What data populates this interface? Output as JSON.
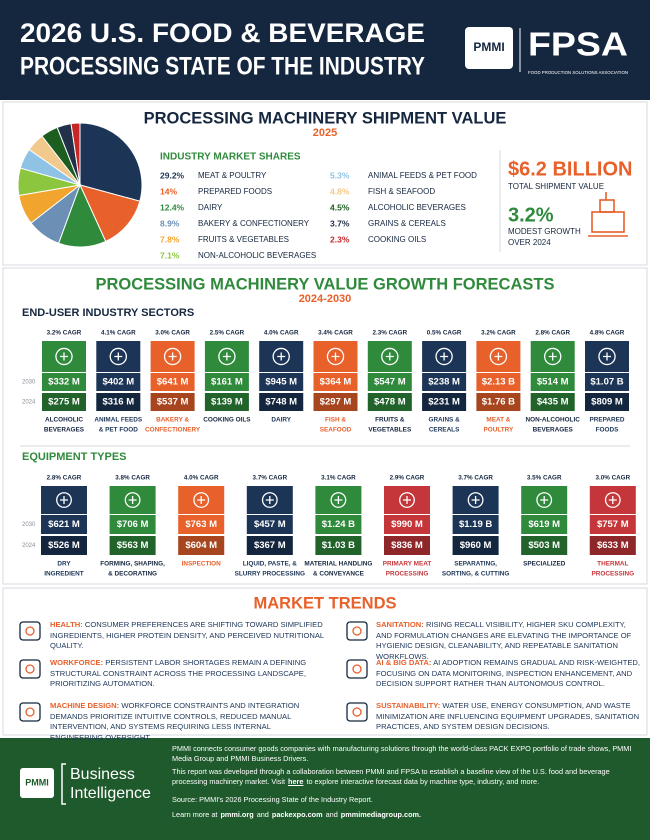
{
  "header": {
    "title_line1": "2026 U.S. FOOD & BEVERAGE",
    "title_line2": "PROCESSING STATE OF THE INDUSTRY",
    "logo_pmmi": "PMMI",
    "logo_fpsa": "FPSA",
    "fpsa_tagline": "FOOD PRODUCTION SOLUTIONS ASSOCIATION"
  },
  "chart_data": {
    "type": "pie",
    "title": "PROCESSING MACHINERY SHIPMENT VALUE",
    "subtitle": "2025",
    "legend_title": "INDUSTRY MARKET SHARES",
    "categories": [
      "MEAT & POULTRY",
      "PREPARED FOODS",
      "DAIRY",
      "BAKERY & CONFECTIONERY",
      "FRUITS & VEGETABLES",
      "NON-ALCOHOLIC BEVERAGES",
      "ANIMAL FEEDS & PET FOOD",
      "FISH & SEAFOOD",
      "ALCOHOLIC BEVERAGES",
      "GRAINS & CEREALS",
      "COOKING OILS"
    ],
    "values": [
      29.2,
      14,
      12.4,
      8.9,
      7.8,
      7.1,
      5.3,
      4.8,
      4.5,
      3.7,
      2.3
    ],
    "value_labels": [
      "29.2%",
      "14%",
      "12.4%",
      "8.9%",
      "7.8%",
      "7.1%",
      "5.3%",
      "4.8%",
      "4.5%",
      "3.7%",
      "2.3%"
    ],
    "colors": [
      "#1c3557",
      "#e8602a",
      "#2f8a3c",
      "#6b8fb5",
      "#f2a52e",
      "#8cc63f",
      "#8fc3e6",
      "#f2c98c",
      "#1b5e20",
      "#22304a",
      "#c62828"
    ]
  },
  "summary": {
    "total": "$6.2 BILLION",
    "total_label": "TOTAL SHIPMENT VALUE",
    "growth": "3.2%",
    "growth_label_1": "MODEST GROWTH",
    "growth_label_2": "OVER 2024"
  },
  "forecasts": {
    "title": "PROCESSING MACHINERY VALUE GROWTH FORECASTS",
    "subtitle": "2024-2030",
    "year_2030": "2030",
    "year_2024": "2024",
    "sectors": {
      "title": "END-USER INDUSTRY SECTORS",
      "items": [
        {
          "name_lines": [
            "ALCOHOLIC",
            "BEVERAGES"
          ],
          "color": "#2f8a3c",
          "cagr": {
            "value": 3.2,
            "label": "3.2% CAGR"
          },
          "v2030": {
            "value": 332,
            "label": "$332 M"
          },
          "v2024": {
            "value": 275,
            "label": "$275 M"
          }
        },
        {
          "name_lines": [
            "ANIMAL FEEDS",
            "& PET FOOD"
          ],
          "color": "#1c3557",
          "cagr": {
            "value": 4.1,
            "label": "4.1% CAGR"
          },
          "v2030": {
            "value": 402,
            "label": "$402 M"
          },
          "v2024": {
            "value": 316,
            "label": "$316 M"
          }
        },
        {
          "name_lines": [
            "BAKERY &",
            "CONFECTIONERY"
          ],
          "color": "#e8602a",
          "cagr": {
            "value": 3.0,
            "label": "3.0% CAGR"
          },
          "v2030": {
            "value": 641,
            "label": "$641 M"
          },
          "v2024": {
            "value": 537,
            "label": "$537 M"
          }
        },
        {
          "name_lines": [
            "COOKING OILS"
          ],
          "color": "#2f8a3c",
          "cagr": {
            "value": 2.5,
            "label": "2.5% CAGR"
          },
          "v2030": {
            "value": 161,
            "label": "$161 M"
          },
          "v2024": {
            "value": 139,
            "label": "$139 M"
          }
        },
        {
          "name_lines": [
            "DAIRY"
          ],
          "color": "#1c3557",
          "cagr": {
            "value": 4.0,
            "label": "4.0% CAGR"
          },
          "v2030": {
            "value": 945,
            "label": "$945 M"
          },
          "v2024": {
            "value": 748,
            "label": "$748 M"
          }
        },
        {
          "name_lines": [
            "FISH &",
            "SEAFOOD"
          ],
          "color": "#e8602a",
          "cagr": {
            "value": 3.4,
            "label": "3.4% CAGR"
          },
          "v2030": {
            "value": 364,
            "label": "$364 M"
          },
          "v2024": {
            "value": 297,
            "label": "$297 M"
          }
        },
        {
          "name_lines": [
            "FRUITS &",
            "VEGETABLES"
          ],
          "color": "#2f8a3c",
          "cagr": {
            "value": 2.3,
            "label": "2.3% CAGR"
          },
          "v2030": {
            "value": 547,
            "label": "$547 M"
          },
          "v2024": {
            "value": 478,
            "label": "$478 M"
          }
        },
        {
          "name_lines": [
            "GRAINS &",
            "CEREALS"
          ],
          "color": "#1c3557",
          "cagr": {
            "value": 0.5,
            "label": "0.5% CAGR"
          },
          "v2030": {
            "value": 238,
            "label": "$238 M"
          },
          "v2024": {
            "value": 231,
            "label": "$231 M"
          }
        },
        {
          "name_lines": [
            "MEAT &",
            "POULTRY"
          ],
          "color": "#e8602a",
          "cagr": {
            "value": 3.2,
            "label": "3.2% CAGR"
          },
          "v2030": {
            "value": 2130,
            "label": "$2.13 B"
          },
          "v2024": {
            "value": 1760,
            "label": "$1.76 B"
          }
        },
        {
          "name_lines": [
            "NON-ALCOHOLIC",
            "BEVERAGES"
          ],
          "color": "#2f8a3c",
          "cagr": {
            "value": 2.8,
            "label": "2.8% CAGR"
          },
          "v2030": {
            "value": 514,
            "label": "$514 M"
          },
          "v2024": {
            "value": 435,
            "label": "$435 M"
          }
        },
        {
          "name_lines": [
            "PREPARED",
            "FOODS"
          ],
          "color": "#1c3557",
          "cagr": {
            "value": 4.8,
            "label": "4.8% CAGR"
          },
          "v2030": {
            "value": 1070,
            "label": "$1.07 B"
          },
          "v2024": {
            "value": 809,
            "label": "$809 M"
          }
        }
      ]
    },
    "equipment": {
      "title": "EQUIPMENT TYPES",
      "items": [
        {
          "name_lines": [
            "DRY",
            "INGREDIENT"
          ],
          "color": "#1c3557",
          "cagr": {
            "value": 2.8,
            "label": "2.8% CAGR"
          },
          "v2030": {
            "value": 621,
            "label": "$621 M"
          },
          "v2024": {
            "value": 526,
            "label": "$526 M"
          }
        },
        {
          "name_lines": [
            "FORMING, SHAPING,",
            "& DECORATING"
          ],
          "color": "#2f8a3c",
          "cagr": {
            "value": 3.8,
            "label": "3.8% CAGR"
          },
          "v2030": {
            "value": 706,
            "label": "$706 M"
          },
          "v2024": {
            "value": 563,
            "label": "$563 M"
          }
        },
        {
          "name_lines": [
            "INSPECTION"
          ],
          "color": "#e8602a",
          "cagr": {
            "value": 4.0,
            "label": "4.0% CAGR"
          },
          "v2030": {
            "value": 763,
            "label": "$763 M"
          },
          "v2024": {
            "value": 604,
            "label": "$604 M"
          }
        },
        {
          "name_lines": [
            "LIQUID, PASTE, &",
            "SLURRY PROCESSING"
          ],
          "color": "#1c3557",
          "cagr": {
            "value": 3.7,
            "label": "3.7% CAGR"
          },
          "v2030": {
            "value": 457,
            "label": "$457 M"
          },
          "v2024": {
            "value": 367,
            "label": "$367 M"
          }
        },
        {
          "name_lines": [
            "MATERIAL HANDLING",
            "& CONVEYANCE"
          ],
          "color": "#2f8a3c",
          "cagr": {
            "value": 3.1,
            "label": "3.1% CAGR"
          },
          "v2030": {
            "value": 1240,
            "label": "$1.24 B"
          },
          "v2024": {
            "value": 1030,
            "label": "$1.03 B"
          }
        },
        {
          "name_lines": [
            "PRIMARY MEAT",
            "PROCESSING"
          ],
          "color": "#c4363a",
          "cagr": {
            "value": 2.9,
            "label": "2.9% CAGR"
          },
          "v2030": {
            "value": 990,
            "label": "$990 M"
          },
          "v2024": {
            "value": 836,
            "label": "$836 M"
          }
        },
        {
          "name_lines": [
            "SEPARATING,",
            "SORTING, & CUTTING"
          ],
          "color": "#1c3557",
          "cagr": {
            "value": 3.7,
            "label": "3.7% CAGR"
          },
          "v2030": {
            "value": 1190,
            "label": "$1.19 B"
          },
          "v2024": {
            "value": 960,
            "label": "$960 M"
          }
        },
        {
          "name_lines": [
            "SPECIALIZED"
          ],
          "color": "#2f8a3c",
          "cagr": {
            "value": 3.5,
            "label": "3.5% CAGR"
          },
          "v2030": {
            "value": 619,
            "label": "$619 M"
          },
          "v2024": {
            "value": 503,
            "label": "$503 M"
          }
        },
        {
          "name_lines": [
            "THERMAL",
            "PROCESSING"
          ],
          "color": "#c4363a",
          "cagr": {
            "value": 3.0,
            "label": "3.0% CAGR"
          },
          "v2030": {
            "value": 757,
            "label": "$757 M"
          },
          "v2024": {
            "value": 633,
            "label": "$633 M"
          }
        }
      ]
    }
  },
  "trends": {
    "title": "MARKET TRENDS",
    "items": [
      {
        "heading": "HEALTH:",
        "text": "CONSUMER PREFERENCES ARE SHIFTING TOWARD SIMPLIFIED INGREDIENTS, HIGHER PROTEIN DENSITY, AND PERCEIVED NUTRITIONAL QUALITY."
      },
      {
        "heading": "WORKFORCE:",
        "text": "PERSISTENT LABOR SHORTAGES REMAIN A DEFINING STRUCTURAL CONSTRAINT ACROSS THE PROCESSING LANDSCAPE, PRIORITIZING AUTOMATION."
      },
      {
        "heading": "MACHINE DESIGN:",
        "text": "WORKFORCE CONSTRAINTS AND INTEGRATION DEMANDS PRIORITIZE INTUITIVE CONTROLS, REDUCED MANUAL INTERVENTION, AND SYSTEMS REQUIRING LESS INTERNAL ENGINEERING OVERSIGHT."
      },
      {
        "heading": "SANITATION:",
        "text": "RISING RECALL VISIBILITY, HIGHER SKU COMPLEXITY, AND FORMULATION CHANGES ARE ELEVATING THE IMPORTANCE OF HYGIENIC DESIGN, CLEANABILITY, AND REPEATABLE SANITATION WORKFLOWS."
      },
      {
        "heading": "AI & BIG DATA:",
        "text": "AI ADOPTION REMAINS GRADUAL AND RISK-WEIGHTED, FOCUSING ON DATA MONITORING, INSPECTION ENHANCEMENT, AND DECISION SUPPORT RATHER THAN AUTONOMOUS CONTROL."
      },
      {
        "heading": "SUSTAINABILITY:",
        "text": "WATER USE, ENERGY CONSUMPTION, AND WASTE MINIMIZATION ARE INFLUENCING EQUIPMENT UPGRADES, SANITATION PRACTICES, AND SYSTEM DESIGN DECISIONS."
      }
    ]
  },
  "footer": {
    "logo_pmmi": "PMMI",
    "logo_line1": "Business",
    "logo_line2": "Intelligence",
    "p1": "PMMI connects consumer goods companies with manufacturing solutions through the world-class PACK EXPO portfolio of trade shows, PMMI Media Group and PMMI Business Drivers.",
    "p2_before": "This report was developed through a collaboration between PMMI and FPSA to establish a baseline view of the U.S. food and beverage processing machinery market. Visit",
    "p2_link": "here",
    "p2_after": "to explore interactive forecast data by machine type, industry, and more.",
    "source": "Source: PMMI's 2026 Processing State of the Industry Report.",
    "learn": [
      "Learn more at",
      "pmmi.org",
      "and",
      "packexpo.com",
      "and",
      "pmmimediagroup.com."
    ]
  }
}
